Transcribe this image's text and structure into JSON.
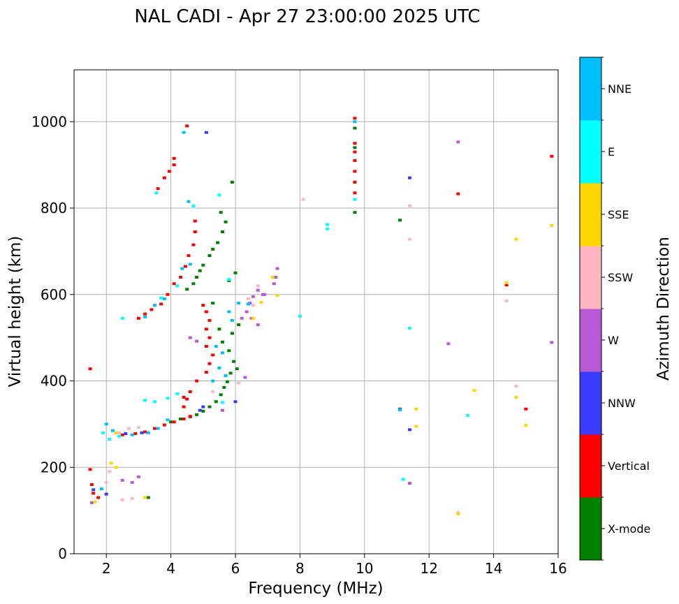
{
  "chart_data": {
    "type": "scatter",
    "title": "NAL CADI - Apr 27 23:00:00 2025 UTC",
    "xlabel": "Frequency (MHz)",
    "ylabel": "Virtual height (km)",
    "xlim": [
      1,
      16
    ],
    "ylim": [
      0,
      1120
    ],
    "xticks": [
      2,
      4,
      6,
      8,
      10,
      12,
      14,
      16
    ],
    "yticks": [
      0,
      200,
      400,
      600,
      800,
      1000
    ],
    "grid": true,
    "colorbar": {
      "label": "Azimuth Direction",
      "categories": [
        {
          "name": "X-mode",
          "color": "#008000"
        },
        {
          "name": "Vertical",
          "color": "#ff0000"
        },
        {
          "name": "NNW",
          "color": "#3a3aff"
        },
        {
          "name": "W",
          "color": "#b65ad6"
        },
        {
          "name": "SSW",
          "color": "#ffb6c1"
        },
        {
          "name": "SSE",
          "color": "#ffd700"
        },
        {
          "name": "E",
          "color": "#00ffff"
        },
        {
          "name": "NNE",
          "color": "#00bfff"
        }
      ]
    },
    "series": [
      {
        "name": "X-mode",
        "points": [
          [
            3.3,
            130
          ],
          [
            4.5,
            612
          ],
          [
            4.7,
            625
          ],
          [
            4.8,
            640
          ],
          [
            4.9,
            655
          ],
          [
            5.0,
            668
          ],
          [
            5.2,
            690
          ],
          [
            5.3,
            705
          ],
          [
            5.45,
            720
          ],
          [
            5.6,
            745
          ],
          [
            5.7,
            768
          ],
          [
            5.55,
            790
          ],
          [
            5.9,
            860
          ],
          [
            6.0,
            650
          ],
          [
            5.8,
            632
          ],
          [
            9.7,
            790
          ],
          [
            9.7,
            940
          ],
          [
            9.7,
            985
          ],
          [
            11.1,
            772
          ],
          [
            4.0,
            305
          ],
          [
            4.3,
            312
          ],
          [
            4.6,
            317
          ],
          [
            4.8,
            322
          ],
          [
            5.0,
            330
          ],
          [
            5.2,
            340
          ],
          [
            5.4,
            352
          ],
          [
            5.55,
            368
          ],
          [
            5.65,
            385
          ],
          [
            5.75,
            398
          ],
          [
            5.85,
            418
          ],
          [
            6.05,
            428
          ],
          [
            5.95,
            445
          ],
          [
            5.8,
            470
          ],
          [
            5.6,
            490
          ],
          [
            5.9,
            510
          ],
          [
            6.1,
            530
          ],
          [
            5.3,
            580
          ],
          [
            5.5,
            520
          ]
        ]
      },
      {
        "name": "Vertical",
        "points": [
          [
            1.5,
            428
          ],
          [
            1.5,
            195
          ],
          [
            1.55,
            160
          ],
          [
            1.6,
            140
          ],
          [
            1.75,
            130
          ],
          [
            2.5,
            275
          ],
          [
            2.9,
            278
          ],
          [
            3.2,
            282
          ],
          [
            3.5,
            290
          ],
          [
            3.8,
            298
          ],
          [
            4.1,
            305
          ],
          [
            4.4,
            312
          ],
          [
            4.6,
            318
          ],
          [
            4.4,
            340
          ],
          [
            4.5,
            358
          ],
          [
            4.6,
            375
          ],
          [
            4.8,
            400
          ],
          [
            5.1,
            420
          ],
          [
            5.2,
            440
          ],
          [
            5.3,
            460
          ],
          [
            5.1,
            480
          ],
          [
            5.2,
            500
          ],
          [
            5.1,
            520
          ],
          [
            5.2,
            540
          ],
          [
            5.1,
            560
          ],
          [
            5.0,
            575
          ],
          [
            4.4,
            362
          ],
          [
            3.0,
            545
          ],
          [
            3.2,
            555
          ],
          [
            3.4,
            565
          ],
          [
            3.7,
            578
          ],
          [
            3.9,
            600
          ],
          [
            4.1,
            625
          ],
          [
            4.3,
            640
          ],
          [
            4.45,
            665
          ],
          [
            4.55,
            690
          ],
          [
            4.7,
            715
          ],
          [
            4.75,
            745
          ],
          [
            4.75,
            770
          ],
          [
            3.6,
            845
          ],
          [
            3.8,
            870
          ],
          [
            3.95,
            885
          ],
          [
            4.1,
            900
          ],
          [
            4.1,
            915
          ],
          [
            4.5,
            990
          ],
          [
            9.7,
            835
          ],
          [
            9.7,
            860
          ],
          [
            9.7,
            885
          ],
          [
            9.7,
            910
          ],
          [
            9.7,
            930
          ],
          [
            9.7,
            950
          ],
          [
            9.7,
            1008
          ],
          [
            12.9,
            833
          ],
          [
            14.4,
            622
          ],
          [
            15.0,
            335
          ],
          [
            15.8,
            920
          ]
        ]
      },
      {
        "name": "NNW",
        "points": [
          [
            1.6,
            148
          ],
          [
            2.0,
            138
          ],
          [
            2.6,
            278
          ],
          [
            3.1,
            280
          ],
          [
            5.0,
            340
          ],
          [
            6.0,
            352
          ],
          [
            4.9,
            332
          ],
          [
            11.1,
            335
          ],
          [
            11.4,
            287
          ],
          [
            5.1,
            975
          ],
          [
            11.4,
            870
          ]
        ]
      },
      {
        "name": "W",
        "points": [
          [
            1.55,
            118
          ],
          [
            2.5,
            170
          ],
          [
            2.8,
            165
          ],
          [
            3.0,
            178
          ],
          [
            4.6,
            500
          ],
          [
            4.8,
            492
          ],
          [
            5.6,
            332
          ],
          [
            6.2,
            545
          ],
          [
            6.35,
            560
          ],
          [
            6.45,
            580
          ],
          [
            6.55,
            595
          ],
          [
            6.7,
            610
          ],
          [
            6.85,
            600
          ],
          [
            7.2,
            625
          ],
          [
            7.25,
            640
          ],
          [
            7.3,
            660
          ],
          [
            6.5,
            545
          ],
          [
            6.7,
            530
          ],
          [
            6.9,
            600
          ],
          [
            6.3,
            408
          ],
          [
            11.4,
            163
          ],
          [
            12.6,
            486
          ],
          [
            12.9,
            953
          ],
          [
            15.8,
            489
          ]
        ]
      },
      {
        "name": "SSW",
        "points": [
          [
            2.0,
            165
          ],
          [
            2.1,
            190
          ],
          [
            2.5,
            125
          ],
          [
            2.8,
            128
          ],
          [
            2.4,
            280
          ],
          [
            2.7,
            290
          ],
          [
            3.0,
            292
          ],
          [
            5.3,
            375
          ],
          [
            6.1,
            395
          ],
          [
            6.4,
            590
          ],
          [
            6.55,
            575
          ],
          [
            6.7,
            620
          ],
          [
            8.1,
            820
          ],
          [
            11.4,
            728
          ],
          [
            11.4,
            805
          ],
          [
            12.9,
            95
          ],
          [
            14.4,
            585
          ],
          [
            14.7,
            388
          ]
        ]
      },
      {
        "name": "SSE",
        "points": [
          [
            1.65,
            120
          ],
          [
            2.15,
            210
          ],
          [
            2.3,
            200
          ],
          [
            3.2,
            130
          ],
          [
            2.3,
            280
          ],
          [
            6.55,
            545
          ],
          [
            6.8,
            582
          ],
          [
            7.3,
            598
          ],
          [
            7.15,
            640
          ],
          [
            11.6,
            295
          ],
          [
            11.6,
            335
          ],
          [
            12.9,
            92
          ],
          [
            13.4,
            378
          ],
          [
            14.4,
            627
          ],
          [
            14.7,
            362
          ],
          [
            14.7,
            728
          ],
          [
            15.0,
            297
          ],
          [
            15.8,
            760
          ]
        ]
      },
      {
        "name": "E",
        "points": [
          [
            1.9,
            280
          ],
          [
            2.1,
            265
          ],
          [
            2.4,
            272
          ],
          [
            3.2,
            355
          ],
          [
            3.5,
            352
          ],
          [
            3.9,
            360
          ],
          [
            4.2,
            370
          ],
          [
            2.5,
            545
          ],
          [
            3.7,
            592
          ],
          [
            4.2,
            620
          ],
          [
            4.7,
            805
          ],
          [
            5.5,
            830
          ],
          [
            5.8,
            635
          ],
          [
            5.6,
            350
          ],
          [
            8.0,
            550
          ],
          [
            8.85,
            762
          ],
          [
            8.85,
            752
          ],
          [
            9.7,
            820
          ],
          [
            11.4,
            522
          ],
          [
            11.2,
            172
          ],
          [
            13.2,
            320
          ],
          [
            3.55,
            835
          ]
        ]
      },
      {
        "name": "NNE",
        "points": [
          [
            1.85,
            150
          ],
          [
            2.0,
            300
          ],
          [
            2.2,
            285
          ],
          [
            2.8,
            275
          ],
          [
            3.3,
            280
          ],
          [
            3.6,
            290
          ],
          [
            3.9,
            310
          ],
          [
            3.2,
            548
          ],
          [
            3.5,
            575
          ],
          [
            3.8,
            590
          ],
          [
            4.4,
            975
          ],
          [
            4.35,
            660
          ],
          [
            4.6,
            670
          ],
          [
            4.55,
            815
          ],
          [
            5.3,
            400
          ],
          [
            5.5,
            430
          ],
          [
            5.7,
            412
          ],
          [
            5.4,
            480
          ],
          [
            5.6,
            465
          ],
          [
            5.8,
            560
          ],
          [
            5.9,
            540
          ],
          [
            6.1,
            580
          ],
          [
            6.4,
            578
          ],
          [
            9.7,
            1000
          ],
          [
            11.1,
            333
          ]
        ]
      }
    ]
  }
}
